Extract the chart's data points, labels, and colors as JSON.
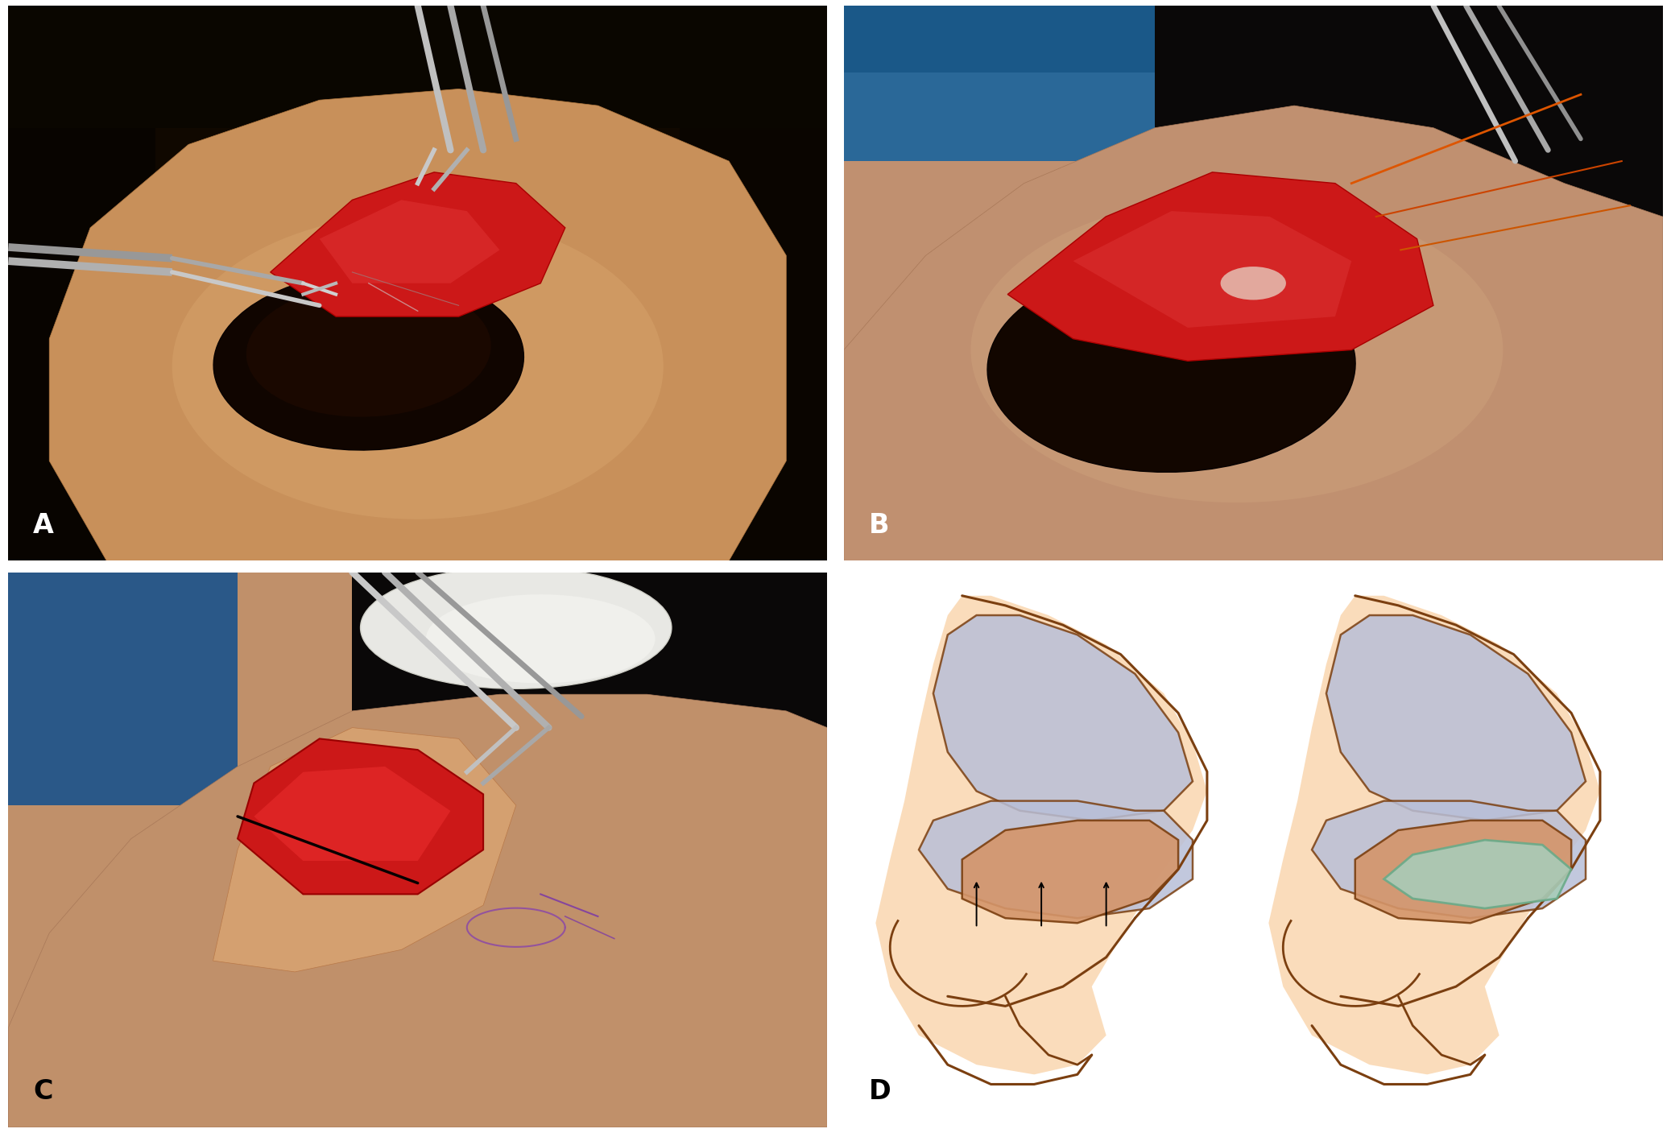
{
  "figure_width": 20.75,
  "figure_height": 14.07,
  "dpi": 100,
  "background_color": "#ffffff",
  "panel_labels": [
    "A",
    "B",
    "C",
    "D"
  ],
  "label_fontsize": 24,
  "label_color_white": "#ffffff",
  "label_color_black": "#000000",
  "skin_peach": "#f5c89a",
  "skin_peach_light": "#fad9b4",
  "skin_peach_medium": "#f0b880",
  "skin_peach_dark": "#e8a060",
  "cartilage_blue": "#b8bfd8",
  "cartilage_blue_light": "#ccd4e8",
  "graft_teal": "#a8ccb8",
  "outline_brown": "#7B3F10",
  "nostril_tan": "#d4956a",
  "nostril_tan2": "#c8845a",
  "arrow_black": "#000000",
  "white": "#ffffff",
  "photo_A_bg": "#1a0800",
  "photo_A_skin": "#c8905a",
  "photo_A_dark": "#0a0500",
  "photo_B_bg": "#0a1018",
  "photo_B_blue": "#2a6090",
  "photo_B_skin": "#c09070",
  "photo_C_bg": "#080808",
  "photo_C_blue": "#2a5080",
  "photo_C_skin": "#c8906a"
}
